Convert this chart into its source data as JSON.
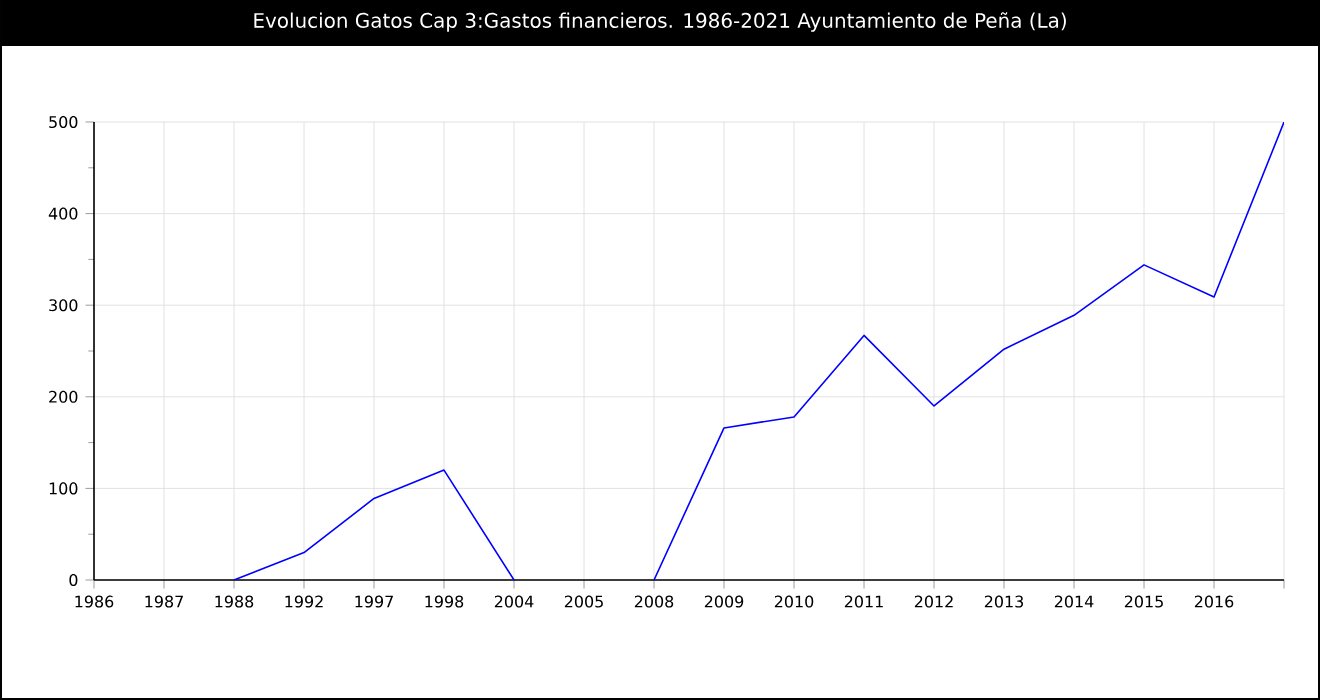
{
  "chart_data": {
    "type": "line",
    "title": "Evolucion Gatos Cap 3:Gastos financieros. 1986-2021 Ayuntamiento de Peña (La)",
    "categories": [
      "1986",
      "1987",
      "1988",
      "1992",
      "1997",
      "1998",
      "2004",
      "2005",
      "2008",
      "2009",
      "2010",
      "2011",
      "2012",
      "2013",
      "2014",
      "2015",
      "2016",
      null
    ],
    "series": [
      {
        "color": "#0000ff",
        "values": [
          null,
          null,
          0,
          30,
          89,
          120,
          0,
          null,
          0,
          166,
          178,
          267,
          190,
          252,
          289,
          344,
          309,
          500
        ]
      }
    ],
    "ylim": [
      0,
      500
    ],
    "yticks": [
      0,
      100,
      200,
      300,
      400,
      500
    ],
    "grid": true,
    "marker": "none",
    "line_style": "solid"
  }
}
